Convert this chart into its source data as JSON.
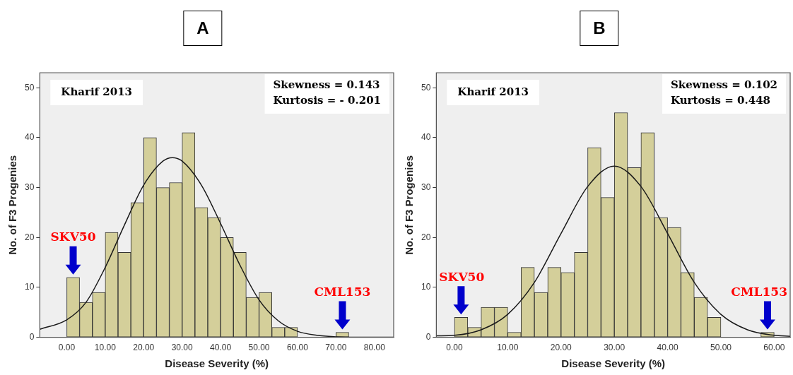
{
  "chart_data": [
    {
      "type": "histogram",
      "title": "A",
      "xlabel": "Disease Severity (%)",
      "ylabel": "No. of F3 Progenies",
      "bins": [
        0,
        3.33,
        6.67,
        10,
        13.33,
        16.67,
        20,
        23.33,
        26.67,
        30,
        33.33,
        36.67,
        40,
        43.33,
        46.67,
        50,
        53.33,
        56.67,
        60,
        63.33,
        66.67,
        70,
        73.33
      ],
      "values": [
        12,
        7,
        9,
        21,
        17,
        27,
        40,
        30,
        31,
        41,
        26,
        24,
        20,
        17,
        8,
        9,
        2,
        2,
        0,
        0,
        0,
        1
      ],
      "color": "#d4cf9a",
      "series": [
        {
          "type": "line",
          "color": "#1a1a1a",
          "x": [
            -7,
            0,
            5,
            10,
            15,
            20,
            25,
            27.5,
            30,
            35,
            40,
            45,
            50,
            55,
            60,
            65,
            70,
            75,
            85
          ],
          "values": [
            1.6,
            3.5,
            7,
            14,
            22.5,
            30.5,
            35.3,
            36,
            35.3,
            30.5,
            22.8,
            14.5,
            7.5,
            3.3,
            1.2,
            0.4,
            0.1,
            0,
            0
          ]
        }
      ],
      "xlim": [
        -7,
        85
      ],
      "xticks": [
        {
          "value": 0,
          "label": "0.00"
        },
        {
          "value": 10,
          "label": "10.00"
        },
        {
          "value": 20,
          "label": "20.00"
        },
        {
          "value": 30,
          "label": "30.00"
        },
        {
          "value": 40,
          "label": "40.00"
        },
        {
          "value": 50,
          "label": "50.00"
        },
        {
          "value": 60,
          "label": "60.00"
        },
        {
          "value": 70,
          "label": "70.00"
        },
        {
          "value": 80,
          "label": "80.00"
        }
      ],
      "ylim": [
        0,
        53
      ],
      "yticks": [
        0,
        10,
        20,
        30,
        40,
        50
      ],
      "grid": false,
      "legend": false,
      "annotations": [
        "Kharif 2013",
        "Skewness = 0.143",
        "Kurtosis = - 0.201",
        {
          "text": "SKV50",
          "x": 1.67,
          "y": 12
        },
        {
          "text": "CML153",
          "x": 71.67,
          "y": 1
        }
      ]
    },
    {
      "type": "histogram",
      "title": "B",
      "xlabel": "Disease Severity (%)",
      "ylabel": "No. of F3 Progenies",
      "bins": [
        0,
        2.5,
        5,
        7.5,
        10,
        12.5,
        15,
        17.5,
        20,
        22.5,
        25,
        27.5,
        30,
        32.5,
        35,
        37.5,
        40,
        42.5,
        45,
        47.5,
        50,
        52.5,
        55,
        57.5,
        60
      ],
      "values": [
        4,
        2,
        6,
        6,
        1,
        14,
        9,
        14,
        13,
        17,
        38,
        28,
        45,
        34,
        41,
        24,
        22,
        13,
        8,
        4,
        0,
        0,
        0,
        1
      ],
      "color": "#d4cf9a",
      "series": [
        {
          "type": "line",
          "color": "#1a1a1a",
          "x": [
            -3.4,
            0,
            5,
            10,
            15,
            20,
            25,
            30,
            35,
            40,
            45,
            50,
            55,
            60,
            63
          ],
          "values": [
            0.3,
            0.4,
            1.5,
            4.6,
            11,
            20.8,
            30.2,
            34.3,
            30.2,
            20.8,
            11,
            4.6,
            1.5,
            0.4,
            0.2
          ]
        }
      ],
      "xlim": [
        -3.4,
        63
      ],
      "xticks": [
        {
          "value": 0,
          "label": "0.00"
        },
        {
          "value": 10,
          "label": "10.00"
        },
        {
          "value": 20,
          "label": "20.00"
        },
        {
          "value": 30,
          "label": "30.00"
        },
        {
          "value": 40,
          "label": "40.00"
        },
        {
          "value": 50,
          "label": "50.00"
        },
        {
          "value": 60,
          "label": "60.00"
        }
      ],
      "ylim": [
        0,
        53
      ],
      "yticks": [
        0,
        10,
        20,
        30,
        40,
        50
      ],
      "grid": false,
      "legend": false,
      "annotations": [
        "Kharif 2013",
        "Skewness = 0.102",
        "Kurtosis = 0.448",
        {
          "text": "SKV50",
          "x": 1.25,
          "y": 4
        },
        {
          "text": "CML153",
          "x": 58.75,
          "y": 1
        }
      ]
    }
  ]
}
